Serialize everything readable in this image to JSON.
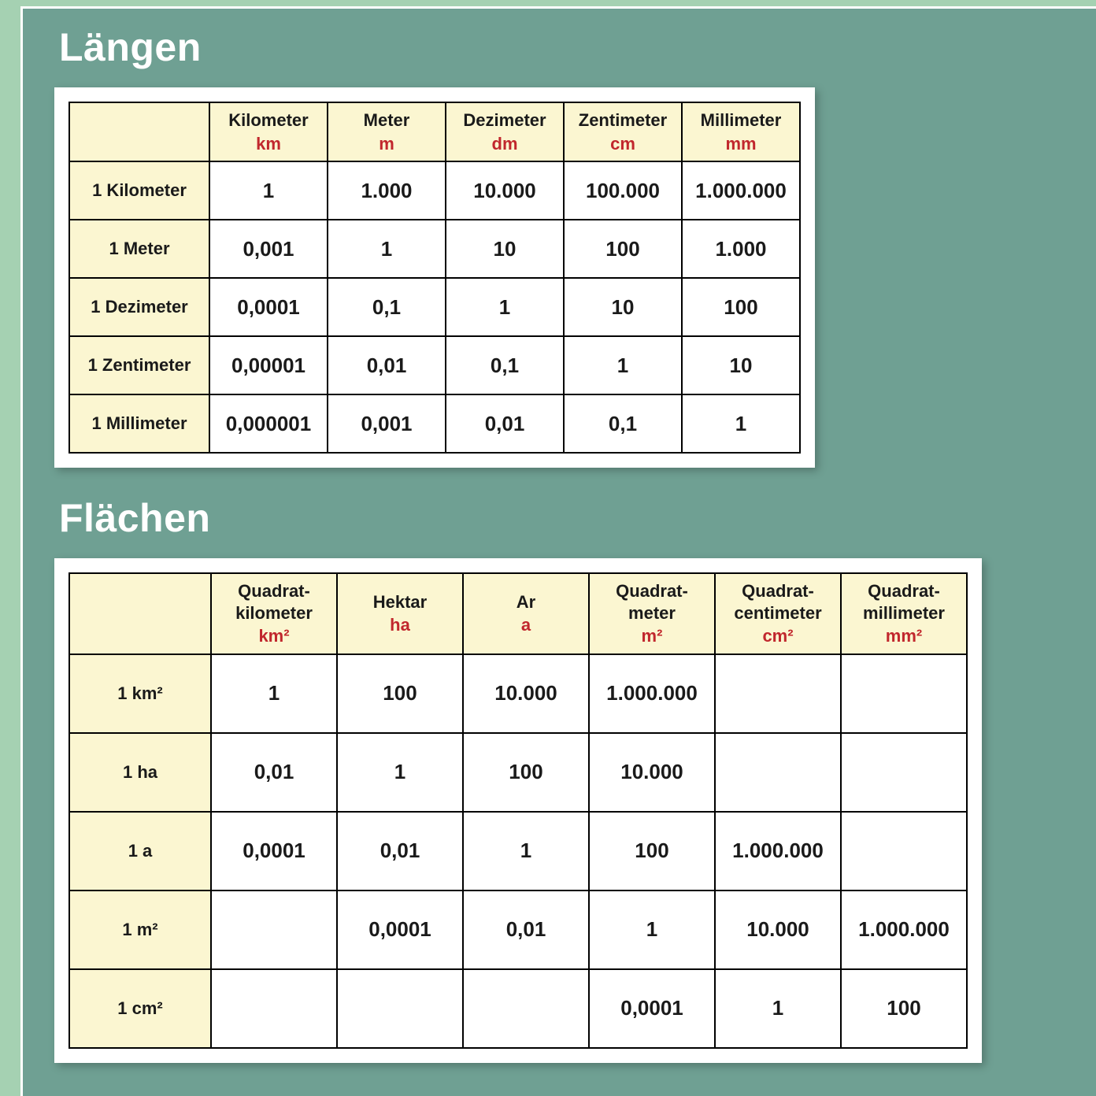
{
  "colors": {
    "outer_bg": "#a5d1b2",
    "panel_bg": "#6fa093",
    "panel_border": "#ffffff",
    "card_bg": "#ffffff",
    "header_bg": "#fbf6d1",
    "cell_border": "#000000",
    "abbr_color": "#c1272d",
    "title_color": "#ffffff",
    "text_color": "#1a1a1a"
  },
  "typography": {
    "title_fontsize": 50,
    "header_fontsize": 22,
    "value_fontsize": 26
  },
  "lengths": {
    "title": "Längen",
    "columns": [
      {
        "name": "Kilometer",
        "abbr": "km"
      },
      {
        "name": "Meter",
        "abbr": "m"
      },
      {
        "name": "Dezimeter",
        "abbr": "dm"
      },
      {
        "name": "Zentimeter",
        "abbr": "cm"
      },
      {
        "name": "Millimeter",
        "abbr": "mm"
      }
    ],
    "rows": [
      {
        "label": "1 Kilometer",
        "values": [
          "1",
          "1.000",
          "10.000",
          "100.000",
          "1.000.000"
        ]
      },
      {
        "label": "1 Meter",
        "values": [
          "0,001",
          "1",
          "10",
          "100",
          "1.000"
        ]
      },
      {
        "label": "1 Dezimeter",
        "values": [
          "0,0001",
          "0,1",
          "1",
          "10",
          "100"
        ]
      },
      {
        "label": "1 Zentimeter",
        "values": [
          "0,00001",
          "0,01",
          "0,1",
          "1",
          "10"
        ]
      },
      {
        "label": "1 Millimeter",
        "values": [
          "0,000001",
          "0,001",
          "0,01",
          "0,1",
          "1"
        ]
      }
    ]
  },
  "areas": {
    "title": "Flächen",
    "columns": [
      {
        "name": "Quadrat-\nkilometer",
        "abbr": "km²"
      },
      {
        "name": "Hektar",
        "abbr": "ha"
      },
      {
        "name": "Ar",
        "abbr": "a"
      },
      {
        "name": "Quadrat-\nmeter",
        "abbr": "m²"
      },
      {
        "name": "Quadrat-\ncentimeter",
        "abbr": "cm²"
      },
      {
        "name": "Quadrat-\nmillimeter",
        "abbr": "mm²"
      }
    ],
    "rows": [
      {
        "label": "1 km²",
        "values": [
          "1",
          "100",
          "10.000",
          "1.000.000",
          "",
          ""
        ]
      },
      {
        "label": "1 ha",
        "values": [
          "0,01",
          "1",
          "100",
          "10.000",
          "",
          ""
        ]
      },
      {
        "label": "1 a",
        "values": [
          "0,0001",
          "0,01",
          "1",
          "100",
          "1.000.000",
          ""
        ]
      },
      {
        "label": "1 m²",
        "values": [
          "",
          "0,0001",
          "0,01",
          "1",
          "10.000",
          "1.000.000"
        ]
      },
      {
        "label": "1 cm²",
        "values": [
          "",
          "",
          "",
          "0,0001",
          "1",
          "100"
        ]
      }
    ]
  }
}
